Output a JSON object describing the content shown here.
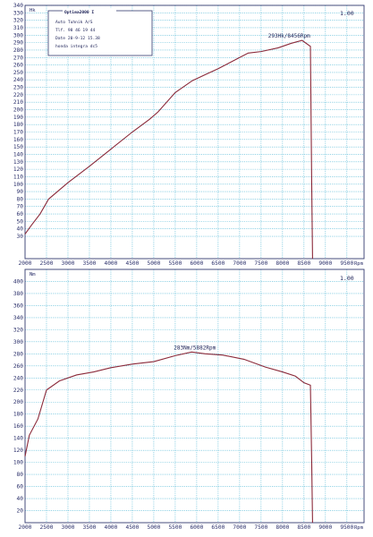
{
  "info_box": {
    "title": "Optima2000 I",
    "lines": [
      "Auto Tuhnik A/S",
      "Tlf.  98 46 19 44",
      "Date  20-9-12  15.38",
      "honda integra dc5"
    ]
  },
  "colors": {
    "curve": "#8b2a3a",
    "grid": "#55b9d6",
    "text": "#2a2f6a"
  },
  "chart_data": [
    {
      "type": "line",
      "unit_label": "Hk",
      "xunit_label": "Rpm",
      "scale_label": "1.00",
      "xlim": [
        2000,
        9900
      ],
      "ylim": [
        0,
        340
      ],
      "xticks": [
        2000,
        2500,
        3000,
        3500,
        4000,
        4500,
        5000,
        5500,
        6000,
        6500,
        7000,
        7500,
        8000,
        8500,
        9000,
        9500
      ],
      "yticks": [
        30,
        40,
        50,
        60,
        70,
        80,
        90,
        100,
        110,
        120,
        130,
        140,
        150,
        160,
        170,
        180,
        190,
        200,
        210,
        220,
        230,
        240,
        250,
        260,
        270,
        280,
        290,
        300,
        310,
        320,
        330,
        340
      ],
      "annotation": "293Hk/8456Rpm",
      "annotation_at": [
        8456,
        293
      ],
      "series": [
        {
          "x": [
            2000,
            2150,
            2350,
            2550,
            3000,
            3500,
            4000,
            4500,
            4900,
            5100,
            5500,
            5900,
            6200,
            6500,
            7000,
            7200,
            7500,
            7900,
            8200,
            8456,
            8650,
            8680,
            8700
          ],
          "y": [
            33,
            45,
            60,
            80,
            102,
            124,
            147,
            170,
            187,
            197,
            223,
            239,
            247,
            255,
            270,
            276,
            278,
            283,
            289,
            293,
            285,
            100,
            0
          ]
        }
      ]
    },
    {
      "type": "line",
      "unit_label": "Nm",
      "xunit_label": "Rpm",
      "scale_label": "1.00",
      "xlim": [
        2000,
        9900
      ],
      "ylim": [
        0,
        420
      ],
      "xticks": [
        2000,
        2500,
        3000,
        3500,
        4000,
        4500,
        5000,
        5500,
        6000,
        6500,
        7000,
        7500,
        8000,
        8500,
        9000,
        9500
      ],
      "yticks": [
        20,
        40,
        60,
        80,
        100,
        120,
        140,
        160,
        180,
        200,
        220,
        240,
        260,
        280,
        300,
        320,
        340,
        360,
        380,
        400
      ],
      "annotation": "283Nm/5882Rpm",
      "annotation_at": [
        5882,
        283
      ],
      "series": [
        {
          "x": [
            2000,
            2100,
            2300,
            2500,
            2800,
            3200,
            3600,
            4000,
            4500,
            5000,
            5500,
            5882,
            6200,
            6600,
            7100,
            7600,
            8000,
            8300,
            8500,
            8650,
            8680,
            8700
          ],
          "y": [
            110,
            145,
            172,
            220,
            235,
            245,
            250,
            257,
            263,
            267,
            277,
            283,
            280,
            278,
            271,
            258,
            250,
            243,
            232,
            228,
            100,
            0
          ]
        }
      ]
    }
  ]
}
